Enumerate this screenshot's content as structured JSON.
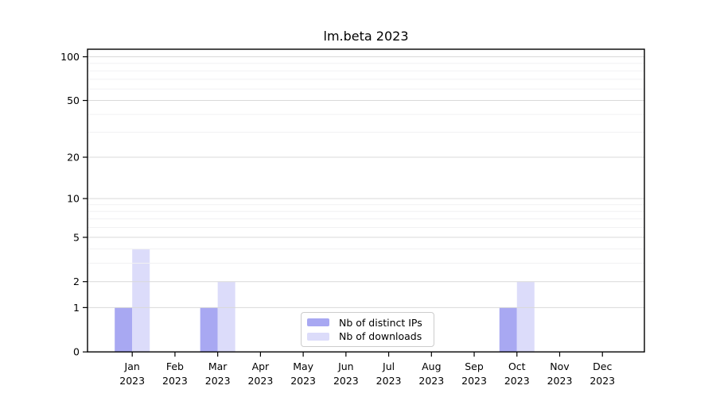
{
  "chart_data": {
    "type": "bar",
    "title": "lm.beta 2023",
    "categories": [
      "Jan",
      "Feb",
      "Mar",
      "Apr",
      "May",
      "Jun",
      "Jul",
      "Aug",
      "Sep",
      "Oct",
      "Nov",
      "Dec"
    ],
    "year": "2023",
    "series": [
      {
        "name": "Nb of distinct IPs",
        "color": "#a8a8f2",
        "values": [
          1,
          0,
          1,
          0,
          0,
          0,
          0,
          0,
          0,
          1,
          0,
          0
        ]
      },
      {
        "name": "Nb of downloads",
        "color": "#dcdcfa",
        "values": [
          4,
          0,
          2,
          0,
          0,
          0,
          0,
          0,
          0,
          2,
          0,
          0
        ]
      }
    ],
    "yscale": "log1p",
    "yticks": [
      0,
      1,
      2,
      5,
      10,
      20,
      50,
      100
    ],
    "minor_gridlines": [
      3,
      4,
      6,
      7,
      8,
      9,
      30,
      40,
      60,
      70,
      80,
      90
    ],
    "ylim": [
      0,
      112
    ],
    "xlabel": "",
    "ylabel": "",
    "grid": true,
    "legend_position": "lower center"
  },
  "colors": {
    "axis": "#000000",
    "grid_major": "#d9d9d9",
    "grid_minor": "#f1f1f3",
    "background": "#ffffff",
    "text": "#000000",
    "legend_border": "#cccccc"
  }
}
